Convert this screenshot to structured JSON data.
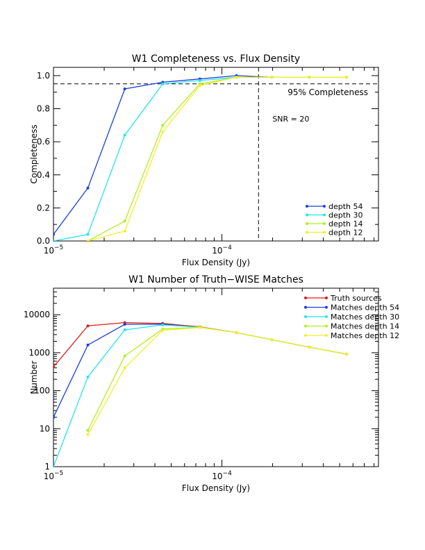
{
  "chart_data": [
    {
      "type": "line",
      "title": "W1 Completeness vs. Flux Density",
      "xlabel": "Flux Density (Jy)",
      "ylabel": "Completeness",
      "xscale": "log",
      "xlim": [
        1e-05,
        0.00085
      ],
      "ylim": [
        0,
        1.05
      ],
      "x_ticks": [
        {
          "v": 1e-05,
          "base": "10",
          "exp": "−5"
        },
        {
          "v": 0.0001,
          "base": "10",
          "exp": "−4"
        }
      ],
      "y_ticks": [
        {
          "v": 0.0,
          "label": "0.0"
        },
        {
          "v": 0.2,
          "label": "0.2"
        },
        {
          "v": 0.4,
          "label": "0.4"
        },
        {
          "v": 0.6,
          "label": "0.6"
        },
        {
          "v": 0.8,
          "label": "0.8"
        },
        {
          "v": 1.0,
          "label": "1.0"
        }
      ],
      "reference_lines": [
        {
          "orientation": "horizontal",
          "value": 0.95,
          "label": "95% Completeness"
        },
        {
          "orientation": "vertical",
          "value": 0.000165,
          "label": "SNR = 20"
        }
      ],
      "legend_position": "bottom-right",
      "series": [
        {
          "name": "depth 54",
          "color": "#1a3fdc",
          "x": [
            1e-05,
            1.6e-05,
            2.65e-05,
            4.45e-05,
            7.4e-05,
            0.000122,
            0.000198,
            0.00033,
            0.00055
          ],
          "y": [
            0.04,
            0.32,
            0.92,
            0.96,
            0.98,
            1.0,
            0.99,
            0.99,
            0.99
          ]
        },
        {
          "name": "depth 30",
          "color": "#22e5ee",
          "x": [
            1e-05,
            1.6e-05,
            2.65e-05,
            4.45e-05,
            7.4e-05,
            0.000122,
            0.000198,
            0.00033,
            0.00055
          ],
          "y": [
            0.0,
            0.04,
            0.64,
            0.95,
            0.97,
            0.99,
            0.99,
            0.99,
            0.99
          ]
        },
        {
          "name": "depth 14",
          "color": "#b0ef22",
          "x": [
            1.6e-05,
            2.65e-05,
            4.45e-05,
            7.4e-05,
            0.000122,
            0.000198,
            0.00033,
            0.00055
          ],
          "y": [
            0.0,
            0.12,
            0.7,
            0.95,
            0.99,
            0.99,
            0.99,
            0.99
          ]
        },
        {
          "name": "depth 12",
          "color": "#f5ee28",
          "x": [
            1.6e-05,
            2.65e-05,
            4.45e-05,
            7.4e-05,
            0.000122,
            0.000198,
            0.00033,
            0.00055
          ],
          "y": [
            0.0,
            0.06,
            0.66,
            0.94,
            0.99,
            0.99,
            0.99,
            0.99
          ]
        }
      ]
    },
    {
      "type": "line",
      "title": "W1 Number of Truth−WISE Matches",
      "xlabel": "Flux Density (Jy)",
      "ylabel": "Number",
      "xscale": "log",
      "yscale": "log",
      "xlim": [
        1e-05,
        0.00085
      ],
      "ylim": [
        1,
        50000
      ],
      "x_ticks": [
        {
          "v": 1e-05,
          "base": "10",
          "exp": "−5"
        },
        {
          "v": 0.0001,
          "base": "10",
          "exp": "−4"
        }
      ],
      "y_ticks": [
        {
          "v": 1,
          "label": "1"
        },
        {
          "v": 10,
          "label": "10"
        },
        {
          "v": 100,
          "label": "100"
        },
        {
          "v": 1000,
          "label": "1000"
        },
        {
          "v": 10000,
          "label": "10000"
        }
      ],
      "legend_position": "top-right",
      "series": [
        {
          "name": "Truth sources",
          "color": "#e01818",
          "x": [
            1e-05,
            1.6e-05,
            2.65e-05,
            4.45e-05,
            7.4e-05,
            0.000122,
            0.000198,
            0.00033,
            0.00055
          ],
          "y": [
            420,
            5100,
            6200,
            5900,
            4800,
            3400,
            2200,
            1400,
            920
          ]
        },
        {
          "name": "Matches depth 54",
          "color": "#1a3fdc",
          "x": [
            1e-05,
            1.6e-05,
            2.65e-05,
            4.45e-05,
            7.4e-05,
            0.000122,
            0.000198,
            0.00033,
            0.00055
          ],
          "y": [
            20,
            1600,
            5600,
            5600,
            4700,
            3400,
            2200,
            1400,
            920
          ]
        },
        {
          "name": "Matches depth 30",
          "color": "#22e5ee",
          "x": [
            1e-05,
            1.6e-05,
            2.65e-05,
            4.45e-05,
            7.4e-05,
            0.000122,
            0.000198,
            0.00033,
            0.00055
          ],
          "y": [
            1,
            230,
            4000,
            5400,
            4700,
            3400,
            2200,
            1400,
            920
          ]
        },
        {
          "name": "Matches depth 14",
          "color": "#b0ef22",
          "x": [
            1.6e-05,
            2.65e-05,
            4.45e-05,
            7.4e-05,
            0.000122,
            0.000198,
            0.00033,
            0.00055
          ],
          "y": [
            9,
            820,
            4200,
            4700,
            3400,
            2200,
            1400,
            920
          ]
        },
        {
          "name": "Matches depth 12",
          "color": "#f5ee28",
          "x": [
            1.6e-05,
            2.65e-05,
            4.45e-05,
            7.4e-05,
            0.000122,
            0.000198,
            0.00033,
            0.00055
          ],
          "y": [
            7,
            400,
            3900,
            4600,
            3400,
            2200,
            1400,
            920
          ]
        }
      ]
    }
  ]
}
